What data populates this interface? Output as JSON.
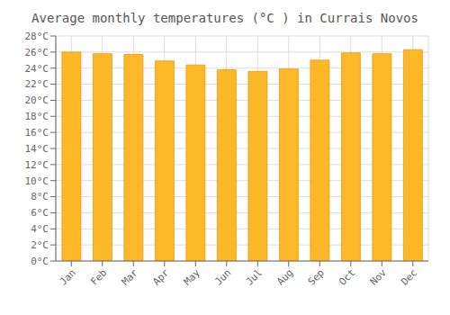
{
  "chart_data": {
    "type": "bar",
    "title": "Average monthly temperatures (°C ) in Currais Novos",
    "categories": [
      "Jan",
      "Feb",
      "Mar",
      "Apr",
      "May",
      "Jun",
      "Jul",
      "Aug",
      "Sep",
      "Oct",
      "Nov",
      "Dec"
    ],
    "values": [
      26.0,
      25.8,
      25.7,
      24.9,
      24.4,
      23.8,
      23.6,
      23.9,
      25.0,
      25.9,
      25.8,
      26.3
    ],
    "color": "#FDB827",
    "ylim": [
      0,
      28
    ],
    "yticks": [
      {
        "value": 0,
        "label": "0°C"
      },
      {
        "value": 2,
        "label": "2°C"
      },
      {
        "value": 4,
        "label": "4°C"
      },
      {
        "value": 6,
        "label": "6°C"
      },
      {
        "value": 8,
        "label": "8°C"
      },
      {
        "value": 10,
        "label": "10°C"
      },
      {
        "value": 12,
        "label": "12°C"
      },
      {
        "value": 14,
        "label": "14°C"
      },
      {
        "value": 16,
        "label": "16°C"
      },
      {
        "value": 18,
        "label": "18°C"
      },
      {
        "value": 20,
        "label": "20°C"
      },
      {
        "value": 22,
        "label": "22°C"
      },
      {
        "value": 24,
        "label": "24°C"
      },
      {
        "value": 26,
        "label": "26°C"
      },
      {
        "value": 28,
        "label": "28°C"
      }
    ],
    "grid": true
  }
}
